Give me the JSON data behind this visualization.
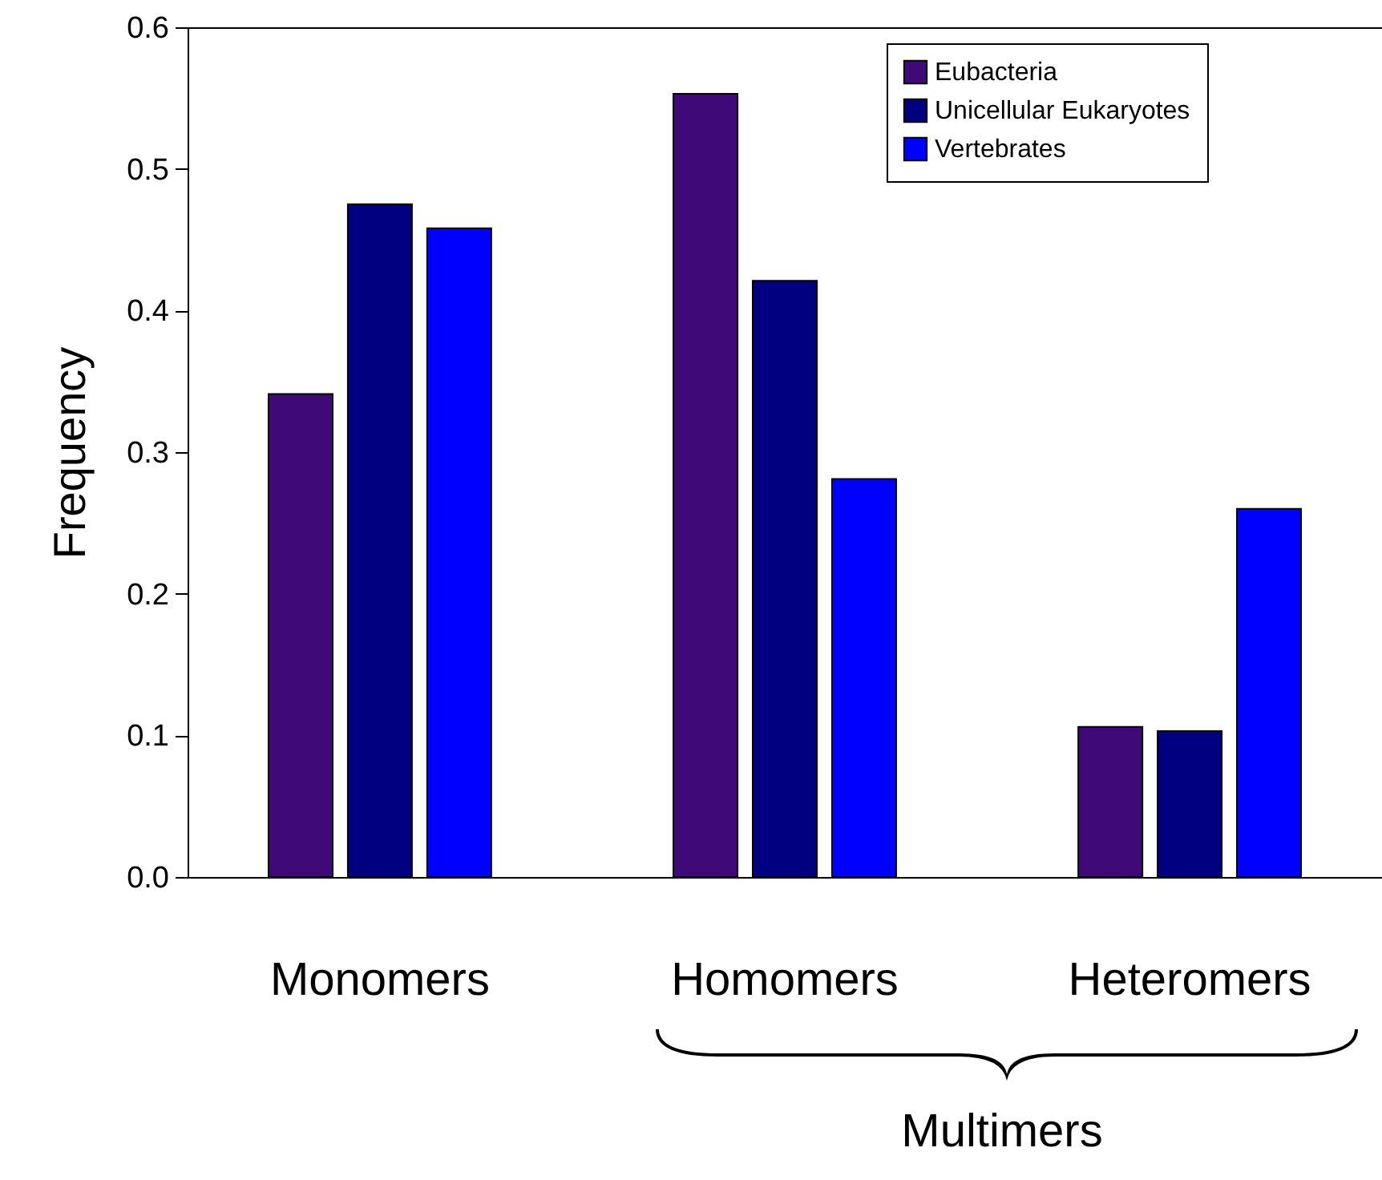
{
  "chart_data": {
    "type": "bar",
    "ylabel": "Frequency",
    "categories": [
      "Monomers",
      "Homomers",
      "Heteromers"
    ],
    "series": [
      {
        "name": "Eubacteria",
        "color": "#3f0a78",
        "values": [
          0.341,
          0.553,
          0.106
        ]
      },
      {
        "name": "Unicellular Eukaryotes",
        "color": "#000080",
        "values": [
          0.475,
          0.421,
          0.103
        ]
      },
      {
        "name": "Vertebrates",
        "color": "#0000ff",
        "values": [
          0.458,
          0.281,
          0.26
        ]
      }
    ],
    "ylim": [
      0,
      0.6
    ],
    "yticks": [
      {
        "value": 0,
        "label": "0.0"
      },
      {
        "value": 0.1,
        "label": "0.1"
      },
      {
        "value": 0.2,
        "label": "0.2"
      },
      {
        "value": 0.3,
        "label": "0.3"
      },
      {
        "value": 0.4,
        "label": "0.4"
      },
      {
        "value": 0.5,
        "label": "0.5"
      },
      {
        "value": 0.6,
        "label": "0.6"
      }
    ],
    "annotations": [
      "Multimers"
    ],
    "legend": "top right",
    "grid": false
  }
}
